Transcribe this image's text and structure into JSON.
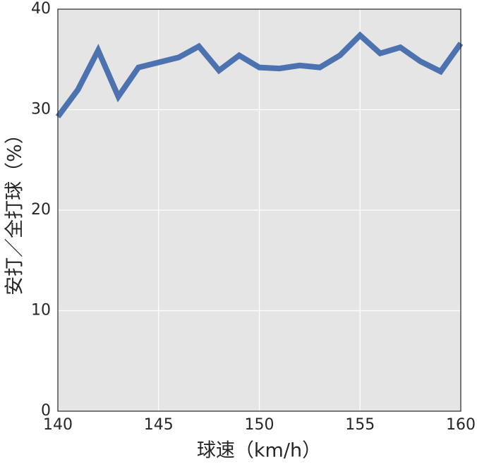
{
  "chart_data": {
    "type": "line",
    "x_label": "球速（km/h）",
    "y_label": "安打／全打球（%）",
    "x": [
      140,
      141,
      142,
      143,
      144,
      145,
      146,
      147,
      148,
      149,
      150,
      151,
      152,
      153,
      154,
      155,
      156,
      157,
      158,
      159,
      160
    ],
    "series": [
      {
        "color": "#4c72b0",
        "values": [
          29.3,
          32.0,
          35.9,
          31.3,
          34.2,
          34.7,
          35.2,
          36.3,
          33.9,
          35.4,
          34.2,
          34.1,
          34.4,
          34.2,
          35.4,
          37.4,
          35.6,
          36.2,
          34.8,
          33.8,
          36.6
        ]
      }
    ],
    "xlim": [
      140,
      160
    ],
    "xticks": [
      140,
      145,
      150,
      155,
      160
    ],
    "ylim": [
      0,
      40
    ],
    "yticks": [
      0,
      10,
      20,
      30,
      40
    ],
    "grid": true
  }
}
